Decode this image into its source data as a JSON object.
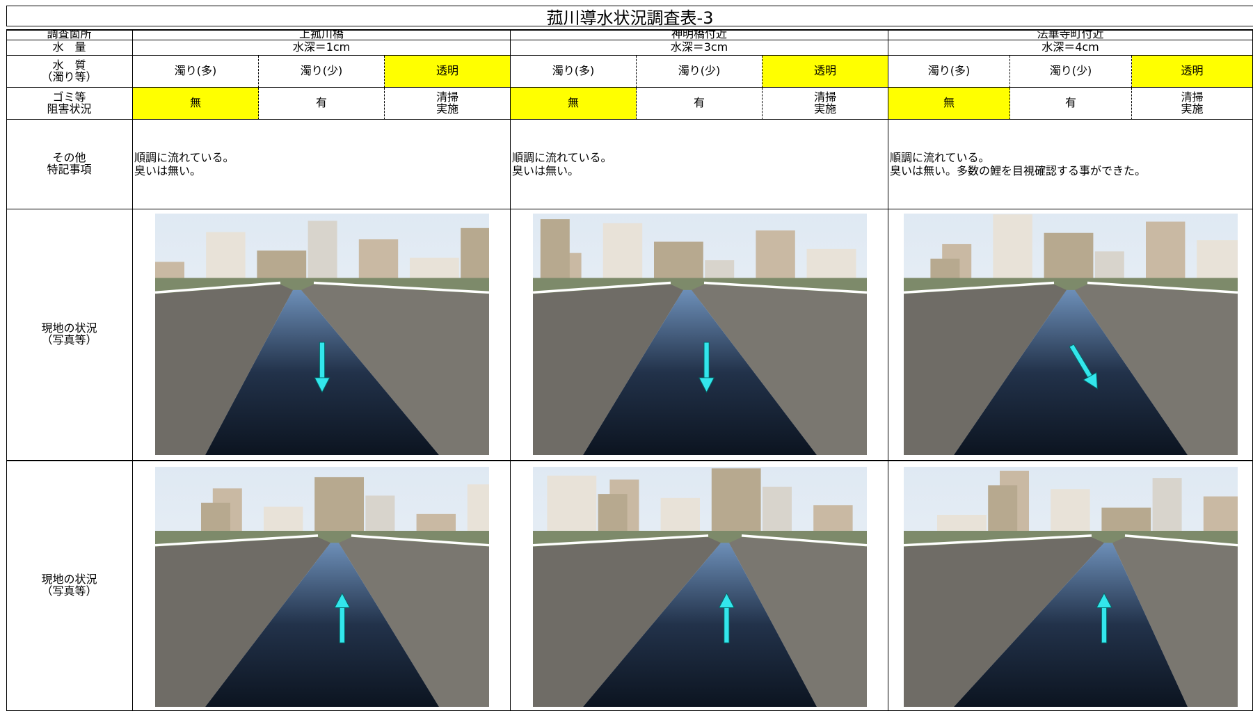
{
  "title": "菰川導水状況調査表-3",
  "row_labels": {
    "location": "調査箇所",
    "water_amount": "水　量",
    "water_quality": "水　質\n（濁り等）",
    "obstruction": "ゴミ等\n阻害状況",
    "notes": "その他\n特記事項",
    "photo_rows": [
      "現地の状況\n（写真等）",
      "現地の状況\n（写真等）"
    ]
  },
  "sites": [
    {
      "name": "上菰川橋",
      "depth": "水深＝1cm",
      "quality": [
        "濁り(多)",
        "濁り(少)",
        "透明"
      ],
      "quality_selected": 2,
      "obstruction": [
        "無",
        "有",
        "清掃\n実施"
      ],
      "obstruction_selected": 0,
      "notes": "順調に流れている。\n臭いは無い。"
    },
    {
      "name": "神明橋付近",
      "depth": "水深＝3cm",
      "quality": [
        "濁り(多)",
        "濁り(少)",
        "透明"
      ],
      "quality_selected": 2,
      "obstruction": [
        "無",
        "有",
        "清掃\n実施"
      ],
      "obstruction_selected": 0,
      "notes": "順調に流れている。\n臭いは無い。"
    },
    {
      "name": "法華寺町付近",
      "depth": "水深＝4cm",
      "quality": [
        "濁り(多)",
        "濁り(少)",
        "透明"
      ],
      "quality_selected": 2,
      "obstruction": [
        "無",
        "有",
        "清掃\n実施"
      ],
      "obstruction_selected": 0,
      "notes": "順調に流れている。\n臭いは無い。多数の鯉を目視確認する事ができた。"
    }
  ]
}
